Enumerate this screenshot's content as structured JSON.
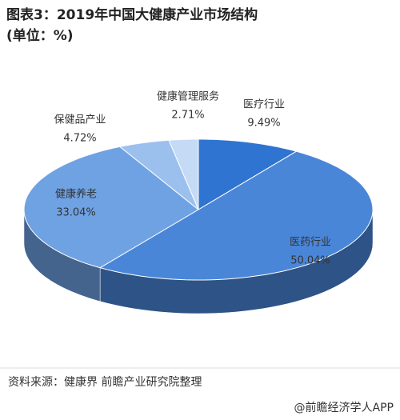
{
  "chart_data": {
    "type": "pie3d",
    "title": "图表3：2019年中国大健康产业市场结构(单位：%)",
    "categories": [
      "医疗行业",
      "医药行业",
      "健康养老",
      "保健品产业",
      "健康管理服务"
    ],
    "values": [
      9.49,
      50.04,
      33.04,
      4.72,
      2.71
    ],
    "value_labels": [
      "9.49%",
      "50.04%",
      "33.04%",
      "4.72%",
      "2.71%"
    ],
    "colors": [
      "#2f74d0",
      "#4a86d8",
      "#6fa2e3",
      "#9cc0ee",
      "#c5daf5"
    ],
    "source": "资料来源：健康界 前瞻产业研究院整理",
    "watermark": "@前瞻经济学人APP"
  }
}
